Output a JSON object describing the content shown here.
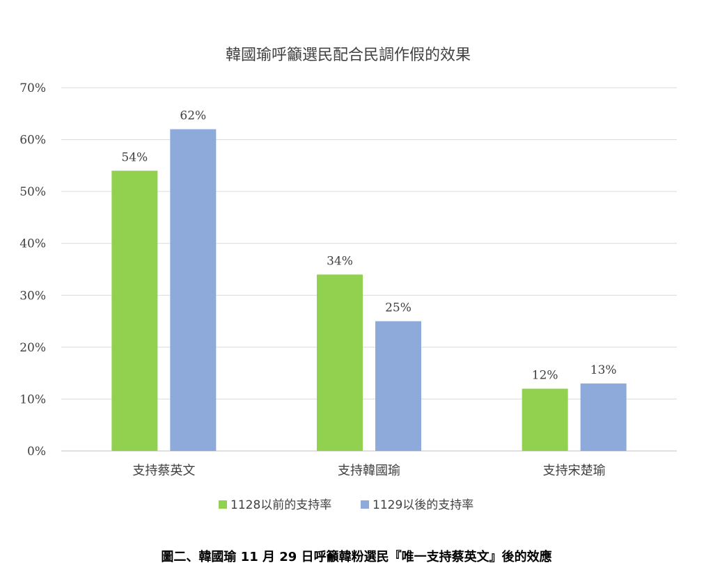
{
  "chart_data": {
    "type": "bar",
    "title": "韓國瑜呼籲選民配合民調作假的效果",
    "categories": [
      "支持蔡英文",
      "支持韓國瑜",
      "支持宋楚瑜"
    ],
    "series": [
      {
        "name": "1128以前的支持率",
        "values": [
          54,
          34,
          12
        ],
        "labels": [
          "54%",
          "34%",
          "12%"
        ],
        "color": "#92d050"
      },
      {
        "name": "1129以後的支持率",
        "values": [
          62,
          25,
          13
        ],
        "labels": [
          "62%",
          "25%",
          "13%"
        ],
        "color": "#8eaadb"
      }
    ],
    "ylim": [
      0,
      70
    ],
    "yticks": [
      0,
      10,
      20,
      30,
      40,
      50,
      60,
      70
    ],
    "ytick_labels": [
      "0%",
      "10%",
      "20%",
      "30%",
      "40%",
      "50%",
      "60%",
      "70%"
    ],
    "grid": true,
    "legend": "bottom",
    "xlabel": "",
    "ylabel": ""
  },
  "caption": "圖二、韓國瑜 11 月 29 日呼籲韓粉選民『唯一支持蔡英文』後的效應"
}
